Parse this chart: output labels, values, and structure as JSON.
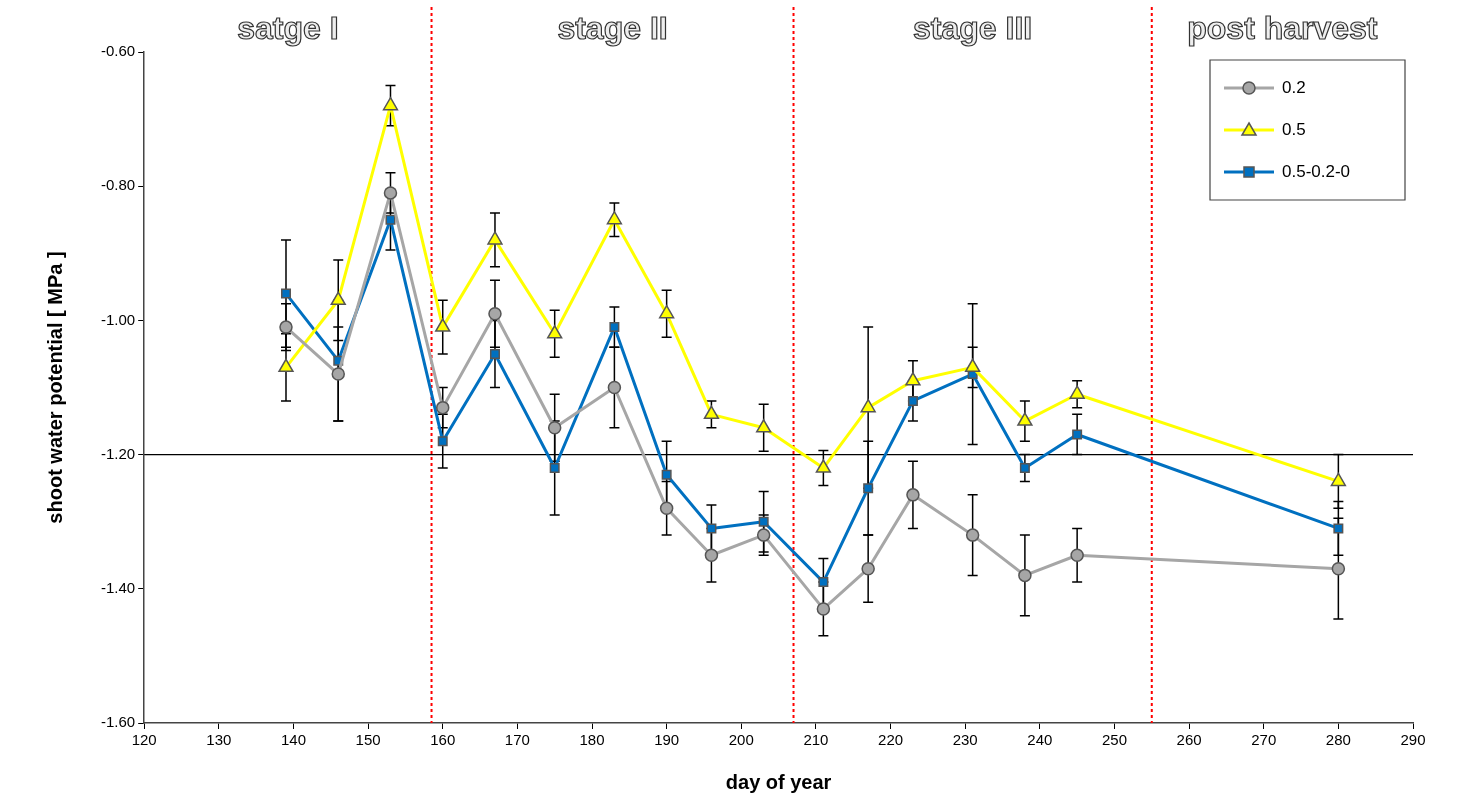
{
  "chart_data": {
    "type": "line",
    "xlabel": "day of year",
    "ylabel": "shoot water potential [ MPa ]",
    "x": [
      139,
      146,
      153,
      160,
      167,
      175,
      183,
      190,
      196,
      203,
      211,
      217,
      223,
      231,
      238,
      245,
      280
    ],
    "series": [
      {
        "name": "0.2",
        "color": "#a6a6a6",
        "marker": "circle",
        "values": [
          -1.01,
          -1.08,
          -0.81,
          -1.13,
          -0.99,
          -1.16,
          -1.1,
          -1.28,
          -1.35,
          -1.32,
          -1.43,
          -1.37,
          -1.26,
          -1.32,
          -1.38,
          -1.35,
          -1.37
        ],
        "errors": [
          0.035,
          0.07,
          0.03,
          0.03,
          0.05,
          0.05,
          0.06,
          0.04,
          0.04,
          0.03,
          0.04,
          0.05,
          0.05,
          0.06,
          0.06,
          0.04,
          0.075
        ]
      },
      {
        "name": "0.5",
        "color": "#ffff00",
        "marker": "triangle",
        "values": [
          -1.07,
          -0.97,
          -0.68,
          -1.01,
          -0.88,
          -1.02,
          -0.85,
          -0.99,
          -1.14,
          -1.16,
          -1.22,
          -1.13,
          -1.09,
          -1.07,
          -1.15,
          -1.11,
          -1.24
        ],
        "errors": [
          0.05,
          0.06,
          0.03,
          0.04,
          0.04,
          0.035,
          0.025,
          0.035,
          0.02,
          0.035,
          0.026,
          0.12,
          0.03,
          0.03,
          0.03,
          0.02,
          0.04
        ]
      },
      {
        "name": "0.5-0.2-0",
        "color": "#0070c0",
        "marker": "square",
        "values": [
          -0.96,
          -1.06,
          -0.85,
          -1.18,
          -1.05,
          -1.22,
          -1.01,
          -1.23,
          -1.31,
          -1.3,
          -1.39,
          -1.25,
          -1.12,
          -1.08,
          -1.22,
          -1.17,
          -1.31
        ],
        "errors": [
          0.08,
          0.09,
          0.045,
          0.04,
          0.05,
          0.07,
          0.03,
          0.05,
          0.035,
          0.045,
          0.035,
          0.07,
          0.03,
          0.105,
          0.02,
          0.03,
          0.04
        ]
      }
    ],
    "xlim": [
      120,
      290
    ],
    "xticks": [
      120,
      130,
      140,
      150,
      160,
      170,
      180,
      190,
      200,
      210,
      220,
      230,
      240,
      250,
      260,
      270,
      280,
      290
    ],
    "ylim": [
      -1.6,
      -0.6
    ],
    "yticks": [
      {
        "value": -1.6,
        "label": "-1.60"
      },
      {
        "value": -1.4,
        "label": "-1.40"
      },
      {
        "value": -1.2,
        "label": "-1.20"
      },
      {
        "value": -1.0,
        "label": "-1.00"
      },
      {
        "value": -0.8,
        "label": "-0.80"
      },
      {
        "value": -0.6,
        "label": "-0.60"
      }
    ],
    "ref_lines": [
      {
        "axis": "x",
        "value": 158.5,
        "color": "#ff0000",
        "line_style": "dotted"
      },
      {
        "axis": "x",
        "value": 207,
        "color": "#ff0000",
        "line_style": "dotted"
      },
      {
        "axis": "x",
        "value": 255,
        "color": "#ff0000",
        "line_style": "dotted"
      },
      {
        "axis": "y",
        "value": -1.2,
        "color": "#000000",
        "line_style": "solid"
      }
    ],
    "annotations": [
      "satge I",
      "stage II",
      "stage III",
      "post harvest"
    ],
    "grid": false,
    "legend": "top right",
    "line_style": "solid"
  }
}
